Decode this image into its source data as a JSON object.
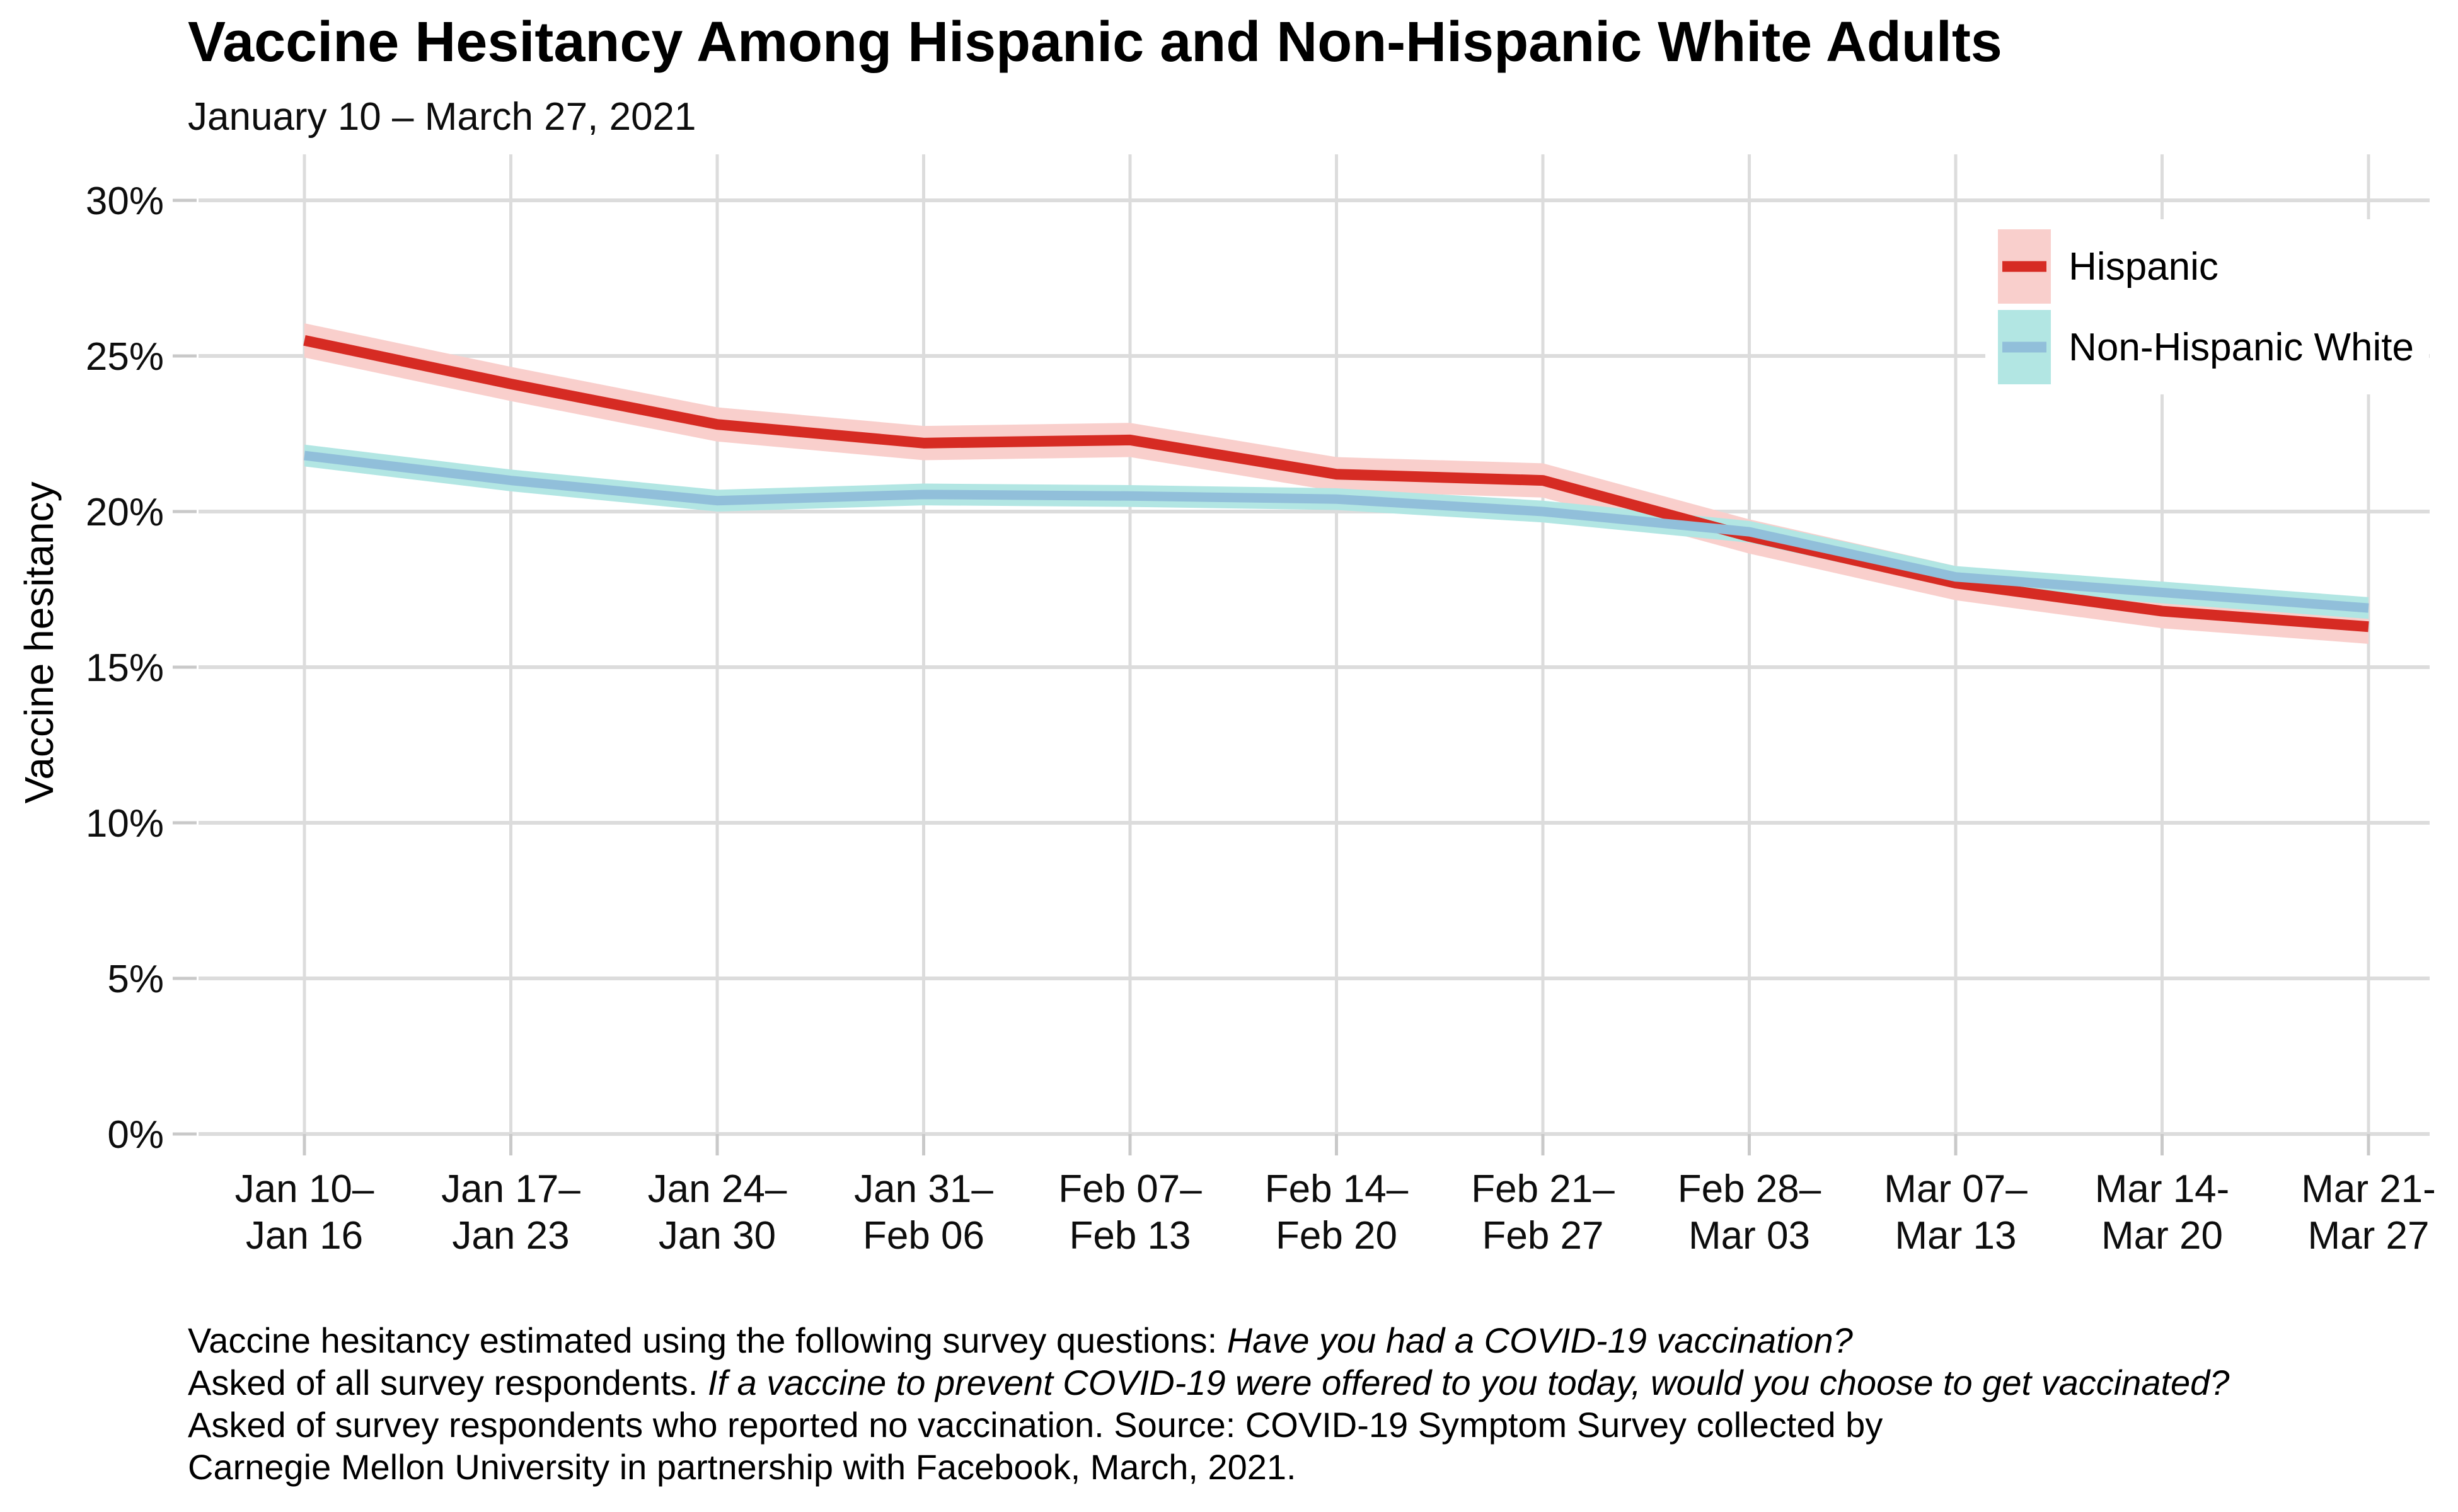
{
  "header": {
    "title": "Vaccine Hesitancy Among Hispanic and Non-Hispanic White Adults",
    "subtitle": "January 10 – March 27, 2021"
  },
  "colors": {
    "background": "#FFFFFF",
    "grid": "#DCDCDC",
    "axis_tick": "#C9C9C9",
    "text": "#000000",
    "hispanic_line": "#D62B23",
    "hispanic_ribbon": "#F9CFCC",
    "non_hispanic_white_line": "#91BFDA",
    "non_hispanic_white_ribbon": "#B2E6E3"
  },
  "legend": {
    "position": "top-right",
    "items": [
      {
        "label": "Hispanic",
        "line_color": "#D62B23",
        "ribbon_color": "#F9CFCC"
      },
      {
        "label": "Non-Hispanic White",
        "line_color": "#91BFDA",
        "ribbon_color": "#B2E6E3"
      }
    ]
  },
  "chart_data": {
    "type": "line",
    "title": "Vaccine Hesitancy Among Hispanic and Non-Hispanic White Adults",
    "subtitle": "January 10 – March 27, 2021",
    "xlabel": "",
    "ylabel": "Vaccine hesitancy",
    "categories": [
      [
        "Jan 10–",
        "Jan 16"
      ],
      [
        "Jan 17–",
        "Jan 23"
      ],
      [
        "Jan 24–",
        "Jan 30"
      ],
      [
        "Jan 31–",
        "Feb 06"
      ],
      [
        "Feb 07–",
        "Feb 13"
      ],
      [
        "Feb 14–",
        "Feb 20"
      ],
      [
        "Feb 21–",
        "Feb 27"
      ],
      [
        "Feb 28–",
        "Mar 03"
      ],
      [
        "Mar 07–",
        "Mar 13"
      ],
      [
        "Mar 14-",
        "Mar 20"
      ],
      [
        "Mar 21-",
        "Mar 27"
      ]
    ],
    "series": [
      {
        "name": "Hispanic",
        "values": [
          25.5,
          24.1,
          22.8,
          22.2,
          22.3,
          21.2,
          21.0,
          19.2,
          17.7,
          16.8,
          16.3
        ],
        "ci_halfwidth": 0.55,
        "line_color": "#D62B23",
        "ribbon_color": "#F9CFCC"
      },
      {
        "name": "Non-Hispanic White",
        "values": [
          21.8,
          21.0,
          20.35,
          20.55,
          20.5,
          20.4,
          20.0,
          19.35,
          17.9,
          17.4,
          16.9
        ],
        "ci_halfwidth": 0.35,
        "line_color": "#91BFDA",
        "ribbon_color": "#B2E6E3"
      }
    ],
    "y_ticks": [
      0,
      5,
      10,
      15,
      20,
      25,
      30
    ],
    "y_tick_suffix": "%",
    "ylim": [
      0,
      31.5
    ],
    "grid": true,
    "legend_position": "top-right"
  },
  "caption": {
    "lines": [
      [
        {
          "t": "Vaccine hesitancy estimated using the following survey questions: ",
          "i": false
        },
        {
          "t": "Have you had a COVID-19 vaccination?",
          "i": true
        }
      ],
      [
        {
          "t": "Asked of all survey respondents. ",
          "i": false
        },
        {
          "t": "If a vaccine to prevent COVID-19 were offered to you today, would you choose to get vaccinated?",
          "i": true
        }
      ],
      [
        {
          "t": "Asked of survey respondents who reported no vaccination. Source: COVID-19 Symptom Survey collected by",
          "i": false
        }
      ],
      [
        {
          "t": "Carnegie Mellon University in partnership with Facebook, March, 2021.",
          "i": false
        }
      ]
    ]
  }
}
